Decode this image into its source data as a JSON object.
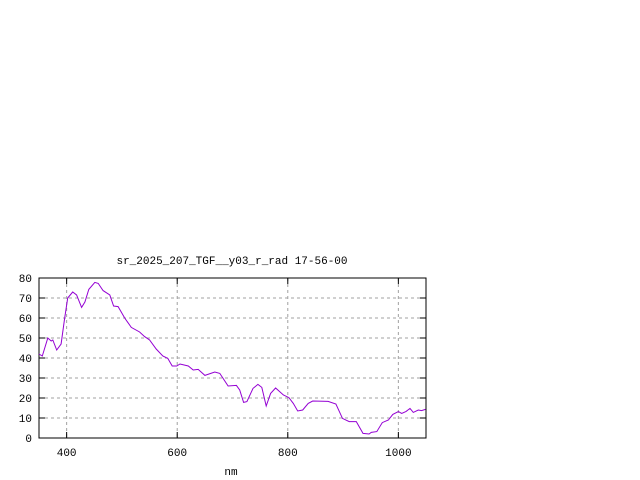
{
  "chart_data": {
    "type": "line",
    "title": "sr_2025_207_TGF__y03_r_rad 17-56-00",
    "xlabel": "nm",
    "ylabel": "",
    "xlim": [
      350,
      1050
    ],
    "ylim": [
      0,
      80
    ],
    "xticks": [
      400,
      600,
      800,
      1000
    ],
    "yticks": [
      0,
      10,
      20,
      30,
      40,
      50,
      60,
      70,
      80
    ],
    "grid": true,
    "series": [
      {
        "color": "#9400d3",
        "x": [
          350,
          356,
          366,
          372,
          375,
          382,
          390,
          396,
          402,
          411,
          418,
          427,
          433,
          440,
          451,
          457,
          466,
          478,
          485,
          493,
          505,
          517,
          532,
          541,
          550,
          562,
          574,
          583,
          591,
          599,
          605,
          620,
          629,
          638,
          650,
          668,
          677,
          692,
          707,
          713,
          720,
          726,
          737,
          746,
          753,
          761,
          769,
          778,
          792,
          802,
          810,
          818,
          827,
          837,
          845,
          873,
          887,
          899,
          911,
          924,
          936,
          947,
          951,
          961,
          971,
          982,
          990,
          1000,
          1006,
          1014,
          1021,
          1027,
          1036,
          1042,
          1049
        ],
        "y": [
          42,
          41,
          50,
          48.5,
          49,
          44,
          47,
          59,
          70,
          73,
          71.5,
          65.3,
          68,
          74.3,
          77.8,
          77.3,
          73.7,
          71.5,
          66,
          65.7,
          60,
          55.3,
          53,
          50.7,
          49,
          44.5,
          41,
          39.8,
          36,
          36,
          37,
          36,
          34,
          34.3,
          31.3,
          33,
          32.3,
          26,
          26.3,
          24,
          17.8,
          18.2,
          24.8,
          26.8,
          25.3,
          16,
          22.3,
          25,
          21.5,
          20.2,
          17.3,
          13.5,
          14,
          17.3,
          18.5,
          18.3,
          17,
          9.8,
          8.2,
          8.2,
          2.3,
          2,
          2.8,
          3.2,
          7.7,
          9,
          11.8,
          13.2,
          12.3,
          13.3,
          14.8,
          12.8,
          14,
          13.7,
          14.3
        ]
      }
    ]
  }
}
